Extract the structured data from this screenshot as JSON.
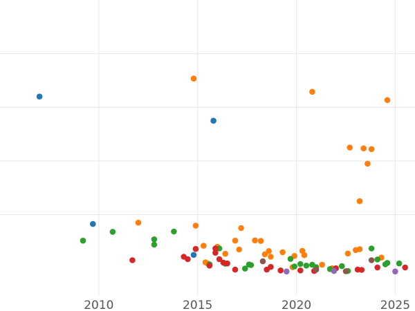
{
  "chart_data": {
    "type": "scatter",
    "title": "",
    "xlabel": "",
    "ylabel": "",
    "xlim": [
      2005.0,
      2026.0
    ],
    "ylim": [
      -0.1,
      1.0
    ],
    "x_ticks": [
      2010,
      2015,
      2020,
      2025
    ],
    "x_tick_labels": [
      "2010",
      "2015",
      "2020",
      "2025"
    ],
    "y_gridlines": [
      0.2,
      0.4,
      0.6,
      0.8
    ],
    "grid": true,
    "legend": "none",
    "series": [
      {
        "color": "#1f77b4",
        "points": [
          {
            "x": 2007.0,
            "y": 0.64
          },
          {
            "x": 2009.7,
            "y": 0.165
          },
          {
            "x": 2015.8,
            "y": 0.55
          },
          {
            "x": 2014.8,
            "y": 0.05
          }
        ]
      },
      {
        "color": "#ff7f0e",
        "points": [
          {
            "x": 2014.8,
            "y": 0.707
          },
          {
            "x": 2020.8,
            "y": 0.658
          },
          {
            "x": 2024.6,
            "y": 0.627
          },
          {
            "x": 2022.7,
            "y": 0.45
          },
          {
            "x": 2023.4,
            "y": 0.447
          },
          {
            "x": 2023.8,
            "y": 0.444
          },
          {
            "x": 2023.6,
            "y": 0.39
          },
          {
            "x": 2023.2,
            "y": 0.25
          },
          {
            "x": 2012.0,
            "y": 0.17
          },
          {
            "x": 2014.9,
            "y": 0.159
          },
          {
            "x": 2017.2,
            "y": 0.15
          },
          {
            "x": 2016.9,
            "y": 0.103
          },
          {
            "x": 2015.3,
            "y": 0.084
          },
          {
            "x": 2017.9,
            "y": 0.104
          },
          {
            "x": 2018.2,
            "y": 0.102
          },
          {
            "x": 2016.0,
            "y": 0.08
          },
          {
            "x": 2017.1,
            "y": 0.07
          },
          {
            "x": 2016.4,
            "y": 0.054
          },
          {
            "x": 2018.6,
            "y": 0.064
          },
          {
            "x": 2018.4,
            "y": 0.052
          },
          {
            "x": 2018.7,
            "y": 0.043
          },
          {
            "x": 2019.3,
            "y": 0.06
          },
          {
            "x": 2020.3,
            "y": 0.065
          },
          {
            "x": 2019.9,
            "y": 0.046
          },
          {
            "x": 2020.4,
            "y": 0.049
          },
          {
            "x": 2015.4,
            "y": 0.022
          },
          {
            "x": 2015.5,
            "y": 0.018
          },
          {
            "x": 2019.8,
            "y": 0.004
          },
          {
            "x": 2021.3,
            "y": 0.013
          },
          {
            "x": 2021.8,
            "y": 0.0
          },
          {
            "x": 2022.6,
            "y": 0.055
          },
          {
            "x": 2023.0,
            "y": 0.068
          },
          {
            "x": 2023.2,
            "y": 0.071
          },
          {
            "x": 2024.3,
            "y": 0.04
          }
        ]
      },
      {
        "color": "#2ca02c",
        "points": [
          {
            "x": 2009.2,
            "y": 0.103
          },
          {
            "x": 2010.7,
            "y": 0.136
          },
          {
            "x": 2013.8,
            "y": 0.137
          },
          {
            "x": 2012.8,
            "y": 0.108
          },
          {
            "x": 2012.8,
            "y": 0.088
          },
          {
            "x": 2016.1,
            "y": 0.074
          },
          {
            "x": 2015.6,
            "y": 0.015
          },
          {
            "x": 2016.4,
            "y": 0.017
          },
          {
            "x": 2017.6,
            "y": 0.014
          },
          {
            "x": 2017.7,
            "y": 0.012
          },
          {
            "x": 2017.4,
            "y": -0.001
          },
          {
            "x": 2019.7,
            "y": 0.035
          },
          {
            "x": 2019.9,
            "y": 0.007
          },
          {
            "x": 2020.2,
            "y": 0.016
          },
          {
            "x": 2020.5,
            "y": 0.01
          },
          {
            "x": 2020.8,
            "y": 0.013
          },
          {
            "x": 2021.0,
            "y": 0.004
          },
          {
            "x": 2021.7,
            "y": -0.003
          },
          {
            "x": 2022.3,
            "y": 0.008
          },
          {
            "x": 2022.6,
            "y": -0.01
          },
          {
            "x": 2023.8,
            "y": 0.074
          },
          {
            "x": 2024.1,
            "y": 0.033
          },
          {
            "x": 2024.6,
            "y": 0.02
          },
          {
            "x": 2024.5,
            "y": 0.015
          },
          {
            "x": 2025.2,
            "y": 0.018
          }
        ]
      },
      {
        "color": "#d62728",
        "points": [
          {
            "x": 2011.7,
            "y": 0.03
          },
          {
            "x": 2014.3,
            "y": 0.043
          },
          {
            "x": 2014.5,
            "y": 0.034
          },
          {
            "x": 2014.9,
            "y": 0.072
          },
          {
            "x": 2015.9,
            "y": 0.074
          },
          {
            "x": 2015.9,
            "y": 0.058
          },
          {
            "x": 2016.1,
            "y": 0.034
          },
          {
            "x": 2016.3,
            "y": 0.021
          },
          {
            "x": 2016.5,
            "y": 0.018
          },
          {
            "x": 2015.6,
            "y": 0.01
          },
          {
            "x": 2016.9,
            "y": -0.005
          },
          {
            "x": 2018.5,
            "y": -0.005
          },
          {
            "x": 2018.7,
            "y": 0.005
          },
          {
            "x": 2019.2,
            "y": -0.008
          },
          {
            "x": 2020.2,
            "y": -0.008
          },
          {
            "x": 2020.9,
            "y": -0.01
          },
          {
            "x": 2022.0,
            "y": 0.0
          },
          {
            "x": 2023.1,
            "y": -0.005
          },
          {
            "x": 2023.3,
            "y": -0.006
          },
          {
            "x": 2024.1,
            "y": 0.003
          },
          {
            "x": 2025.5,
            "y": 0.003
          }
        ]
      },
      {
        "color": "#9467bd",
        "points": [
          {
            "x": 2019.5,
            "y": -0.012
          },
          {
            "x": 2021.9,
            "y": -0.01
          },
          {
            "x": 2025.0,
            "y": -0.012
          }
        ]
      },
      {
        "color": "#8c564b",
        "points": [
          {
            "x": 2018.3,
            "y": 0.026
          },
          {
            "x": 2021.0,
            "y": -0.005
          },
          {
            "x": 2022.5,
            "y": -0.011
          },
          {
            "x": 2023.8,
            "y": 0.03
          }
        ]
      }
    ]
  }
}
